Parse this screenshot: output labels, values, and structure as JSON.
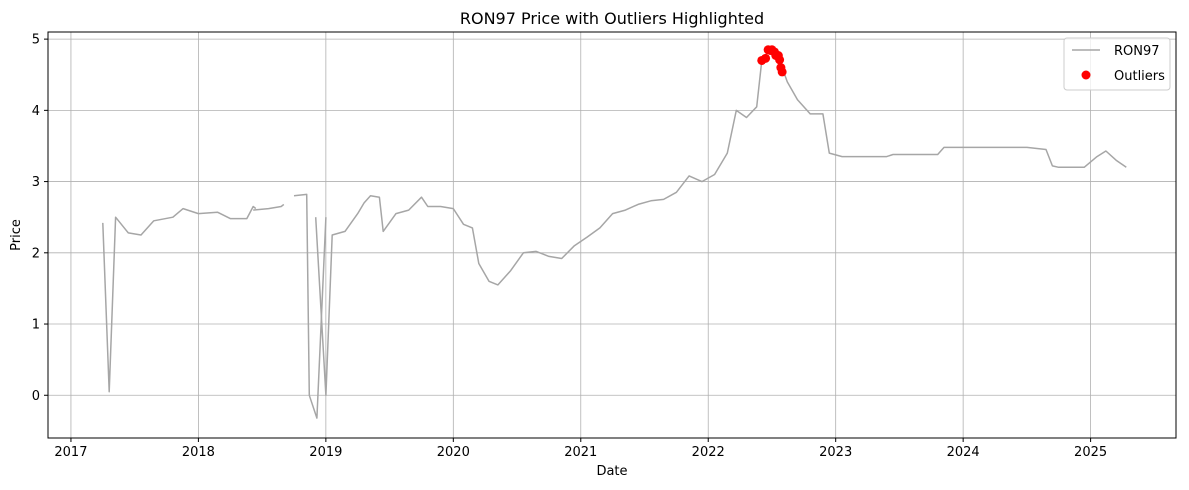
{
  "chart_data": {
    "type": "line",
    "title": "RON97 Price with Outliers Highlighted",
    "xlabel": "Date",
    "ylabel": "Price",
    "xlim": [
      2016.82,
      2025.67
    ],
    "ylim": [
      -0.6,
      5.1
    ],
    "x_ticks": [
      "2017",
      "2018",
      "2019",
      "2020",
      "2021",
      "2022",
      "2023",
      "2024",
      "2025"
    ],
    "y_ticks": [
      "0",
      "1",
      "2",
      "3",
      "4",
      "5"
    ],
    "grid": true,
    "legend_position": "top-right",
    "series": [
      {
        "name": "RON97",
        "kind": "line",
        "color": "#a6a6a6",
        "segments": [
          [
            [
              2017.25,
              2.42
            ],
            [
              2017.3,
              0.05
            ],
            [
              2017.35,
              2.5
            ],
            [
              2017.45,
              2.28
            ],
            [
              2017.55,
              2.25
            ],
            [
              2017.65,
              2.45
            ],
            [
              2017.8,
              2.5
            ],
            [
              2017.88,
              2.62
            ],
            [
              2018.0,
              2.55
            ],
            [
              2018.15,
              2.57
            ],
            [
              2018.25,
              2.48
            ],
            [
              2018.35,
              2.48
            ],
            [
              2018.38,
              2.48
            ],
            [
              2018.43,
              2.65
            ],
            [
              2018.45,
              2.62
            ]
          ],
          [
            [
              2018.43,
              2.6
            ],
            [
              2018.55,
              2.62
            ],
            [
              2018.65,
              2.65
            ],
            [
              2018.67,
              2.68
            ]
          ],
          [
            [
              2018.75,
              2.8
            ],
            [
              2018.85,
              2.82
            ],
            [
              2018.87,
              0.0
            ],
            [
              2018.93,
              -0.32
            ],
            [
              2019.0,
              2.5
            ]
          ],
          [
            [
              2018.92,
              2.5
            ],
            [
              2019.0,
              0.0
            ],
            [
              2019.05,
              2.25
            ],
            [
              2019.15,
              2.3
            ],
            [
              2019.25,
              2.55
            ],
            [
              2019.3,
              2.7
            ],
            [
              2019.35,
              2.8
            ],
            [
              2019.42,
              2.78
            ],
            [
              2019.45,
              2.3
            ],
            [
              2019.55,
              2.55
            ],
            [
              2019.65,
              2.6
            ],
            [
              2019.75,
              2.78
            ],
            [
              2019.8,
              2.65
            ],
            [
              2019.9,
              2.65
            ],
            [
              2020.0,
              2.62
            ],
            [
              2020.08,
              2.4
            ],
            [
              2020.15,
              2.35
            ],
            [
              2020.2,
              1.85
            ],
            [
              2020.28,
              1.6
            ],
            [
              2020.35,
              1.55
            ],
            [
              2020.45,
              1.75
            ],
            [
              2020.55,
              2.0
            ],
            [
              2020.65,
              2.02
            ],
            [
              2020.75,
              1.95
            ],
            [
              2020.85,
              1.92
            ],
            [
              2020.95,
              2.1
            ],
            [
              2021.05,
              2.22
            ],
            [
              2021.15,
              2.35
            ],
            [
              2021.25,
              2.55
            ],
            [
              2021.35,
              2.6
            ],
            [
              2021.45,
              2.68
            ],
            [
              2021.55,
              2.73
            ],
            [
              2021.65,
              2.75
            ],
            [
              2021.75,
              2.85
            ],
            [
              2021.85,
              3.08
            ],
            [
              2021.95,
              3.0
            ],
            [
              2022.05,
              3.1
            ],
            [
              2022.15,
              3.4
            ],
            [
              2022.22,
              4.0
            ],
            [
              2022.3,
              3.9
            ],
            [
              2022.38,
              4.05
            ],
            [
              2022.42,
              4.7
            ],
            [
              2022.48,
              4.85
            ],
            [
              2022.55,
              4.75
            ],
            [
              2022.62,
              4.4
            ],
            [
              2022.7,
              4.15
            ],
            [
              2022.8,
              3.95
            ],
            [
              2022.9,
              3.95
            ],
            [
              2022.95,
              3.4
            ],
            [
              2023.05,
              3.35
            ],
            [
              2023.4,
              3.35
            ],
            [
              2023.45,
              3.38
            ],
            [
              2023.8,
              3.38
            ],
            [
              2023.85,
              3.48
            ],
            [
              2024.5,
              3.48
            ],
            [
              2024.65,
              3.45
            ],
            [
              2024.7,
              3.22
            ],
            [
              2024.75,
              3.2
            ],
            [
              2024.95,
              3.2
            ],
            [
              2025.05,
              3.35
            ],
            [
              2025.12,
              3.43
            ],
            [
              2025.2,
              3.3
            ],
            [
              2025.28,
              3.2
            ]
          ]
        ]
      },
      {
        "name": "Outliers",
        "kind": "scatter",
        "color": "#ff0000",
        "points": [
          [
            2022.42,
            4.7
          ],
          [
            2022.45,
            4.73
          ],
          [
            2022.47,
            4.85
          ],
          [
            2022.49,
            4.84
          ],
          [
            2022.5,
            4.85
          ],
          [
            2022.52,
            4.82
          ],
          [
            2022.53,
            4.77
          ],
          [
            2022.55,
            4.77
          ],
          [
            2022.56,
            4.71
          ],
          [
            2022.57,
            4.6
          ],
          [
            2022.58,
            4.54
          ]
        ]
      }
    ]
  }
}
